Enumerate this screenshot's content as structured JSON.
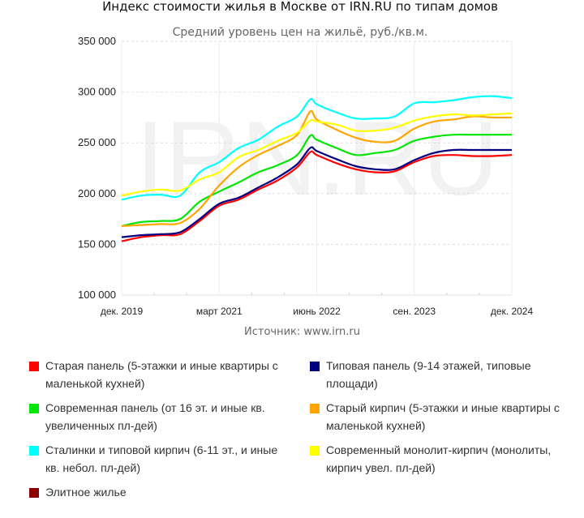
{
  "chart_data": {
    "type": "line",
    "title": "Индекс стоимости жилья в Москве от IRN.RU по типам домов",
    "subtitle": "Средний уровень цен на жильё, руб./кв.м.",
    "source": "Источник: www.irn.ru",
    "watermark": "IRN.RU",
    "xlabel": "",
    "ylabel": "",
    "ylim": [
      100000,
      350000
    ],
    "yticks": [
      100000,
      150000,
      200000,
      250000,
      300000,
      350000
    ],
    "ytick_labels": [
      "100 000",
      "150 000",
      "200 000",
      "250 000",
      "300 000",
      "350 000"
    ],
    "xticks": [
      {
        "label": "дек. 2019",
        "month": 0
      },
      {
        "label": "март 2021",
        "month": 15
      },
      {
        "label": "июнь 2022",
        "month": 30
      },
      {
        "label": "сен. 2023",
        "month": 45
      },
      {
        "label": "дек. 2024",
        "month": 60
      }
    ],
    "x_months": [
      0,
      3,
      6,
      9,
      12,
      15,
      18,
      21,
      24,
      27,
      29,
      30,
      33,
      36,
      39,
      42,
      45,
      48,
      51,
      54,
      57,
      60
    ],
    "grid": true,
    "legend_position": "bottom",
    "series": [
      {
        "name": "Старая панель (5-этажки и иные квартиры с маленькой кухней)",
        "color": "#ff0000",
        "values": [
          153000,
          157000,
          159000,
          160000,
          173000,
          188000,
          194000,
          204000,
          213000,
          226000,
          241000,
          238000,
          230000,
          224000,
          221000,
          222000,
          231000,
          237000,
          238000,
          237000,
          237000,
          238000
        ]
      },
      {
        "name": "Типовая панель (9-14 этажей, типовые площади)",
        "color": "#000080",
        "values": [
          157000,
          159000,
          160000,
          162000,
          175000,
          190000,
          196000,
          206000,
          216000,
          229000,
          245000,
          242000,
          234000,
          227000,
          224000,
          224000,
          233000,
          240000,
          243000,
          243000,
          243000,
          243000
        ]
      },
      {
        "name": "Современная панель (от 16 эт. и иные кв. увеличенных пл-дей)",
        "color": "#00e600",
        "values": [
          168000,
          172000,
          173000,
          175000,
          192000,
          202000,
          211000,
          221000,
          228000,
          238000,
          257000,
          253000,
          245000,
          238000,
          240000,
          243000,
          252000,
          256000,
          258000,
          258000,
          258000,
          258000
        ]
      },
      {
        "name": "Старый кирпич (5-этажки и иные квартиры с маленькой кухней)",
        "color": "#ffa500",
        "values": [
          168000,
          169000,
          170000,
          171000,
          185000,
          208000,
          226000,
          238000,
          247000,
          258000,
          281000,
          273000,
          263000,
          255000,
          251000,
          252000,
          264000,
          271000,
          273000,
          276000,
          275000,
          275000
        ]
      },
      {
        "name": "Сталинки и типовой кирпич (6-11 эт., и иные кв. небол. пл-дей)",
        "color": "#00ffff",
        "values": [
          194000,
          198000,
          199000,
          198000,
          221000,
          231000,
          245000,
          253000,
          266000,
          276000,
          293000,
          288000,
          280000,
          274000,
          274000,
          276000,
          289000,
          290000,
          292000,
          295000,
          296000,
          294000
        ]
      },
      {
        "name": "Современный монолит-кирпич (монолиты, кирпич увел. пл-дей)",
        "color": "#ffff00",
        "values": [
          198000,
          202000,
          204000,
          203000,
          214000,
          221000,
          236000,
          243000,
          252000,
          260000,
          272000,
          271000,
          268000,
          262000,
          262000,
          265000,
          272000,
          276000,
          278000,
          277000,
          278000,
          279000
        ]
      },
      {
        "name": "Элитное жилье",
        "color": "#8b0000",
        "values": []
      }
    ]
  },
  "legend": [
    {
      "label": "Старая панель (5-этажки и иные квартиры с маленькой кухней)",
      "color": "#ff0000"
    },
    {
      "label": "Типовая панель (9-14 этажей, типовые площади)",
      "color": "#000080"
    },
    {
      "label": "Современная панель (от 16 эт. и иные кв. увеличенных пл-дей)",
      "color": "#00e600"
    },
    {
      "label": "Старый кирпич (5-этажки и иные квартиры с маленькой кухней)",
      "color": "#ffa500"
    },
    {
      "label": "Сталинки и типовой кирпич (6-11 эт., и иные кв. небол. пл-дей)",
      "color": "#00ffff"
    },
    {
      "label": "Современный монолит-кирпич (монолиты, кирпич увел. пл-дей)",
      "color": "#ffff00"
    },
    {
      "label": "Элитное жилье",
      "color": "#8b0000"
    }
  ]
}
